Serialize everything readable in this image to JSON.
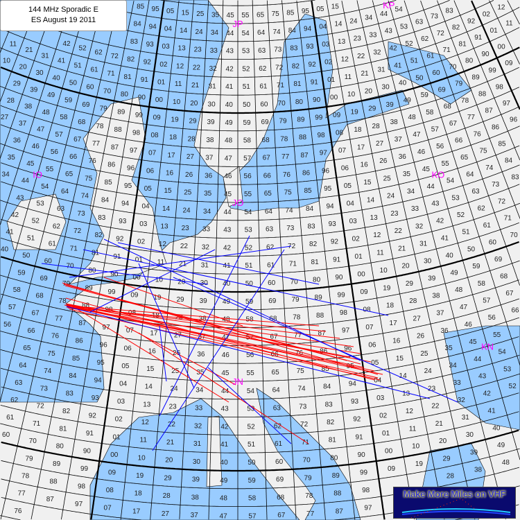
{
  "title": {
    "line1": "144 MHz Sporadic E",
    "line2": "ES  August 19 2011"
  },
  "logo": {
    "text": "Make More Miles on VHF"
  },
  "map": {
    "projection": "conic",
    "lon_range": [
      -26,
      50
    ],
    "lat_range": [
      34,
      68
    ],
    "field_labels": [
      "IO",
      "JO",
      "KO",
      "JN",
      "KN",
      "JP",
      "KP"
    ],
    "grid_square_labels": "two-digit Maidenhead square numbers in every grid cell"
  },
  "colors": {
    "sea": "#99ccff",
    "land": "#f0f0f0",
    "field_label": "#ff00ff",
    "path_red": "#ff0000",
    "path_blue": "#0000ff",
    "grid": "#000000"
  }
}
